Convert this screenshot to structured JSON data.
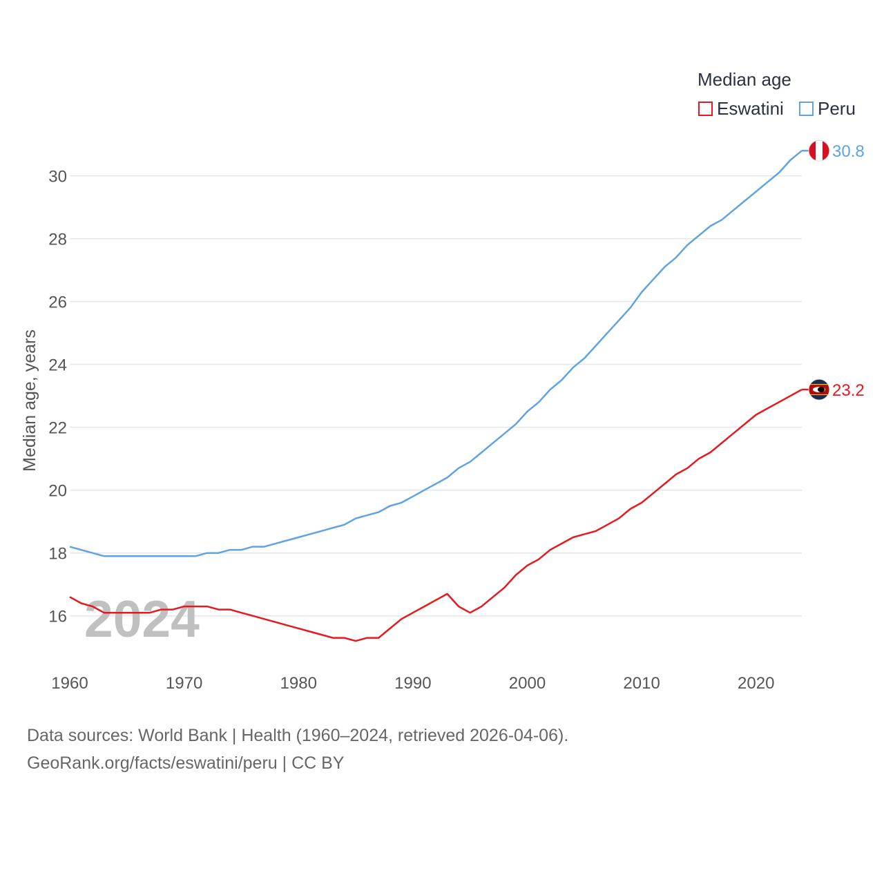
{
  "legend": {
    "title": "Median age",
    "items": [
      {
        "name": "Eswatini",
        "color": "#e8191e"
      },
      {
        "name": "Peru",
        "color": "#5ea3e2"
      }
    ]
  },
  "year_watermark": "2024",
  "source": {
    "line1": "Data sources: World Bank | Health (1960–2024, retrieved 2026-04-06).",
    "line2": "GeoRank.org/facts/eswatini/peru | CC BY"
  },
  "chart_data": {
    "type": "line",
    "title": "",
    "xlabel": "",
    "ylabel": "Median age, years",
    "xlim": [
      1960,
      2024
    ],
    "ylim": [
      14.5,
      31.2
    ],
    "x_ticks": [
      1960,
      1970,
      1980,
      1990,
      2000,
      2010,
      2020
    ],
    "y_ticks": [
      16,
      18,
      20,
      22,
      24,
      26,
      28,
      30
    ],
    "grid": true,
    "legend_position": "top-right",
    "x": [
      1960,
      1961,
      1962,
      1963,
      1964,
      1965,
      1966,
      1967,
      1968,
      1969,
      1970,
      1971,
      1972,
      1973,
      1974,
      1975,
      1976,
      1977,
      1978,
      1979,
      1980,
      1981,
      1982,
      1983,
      1984,
      1985,
      1986,
      1987,
      1988,
      1989,
      1990,
      1991,
      1992,
      1993,
      1994,
      1995,
      1996,
      1997,
      1998,
      1999,
      2000,
      2001,
      2002,
      2003,
      2004,
      2005,
      2006,
      2007,
      2008,
      2009,
      2010,
      2011,
      2012,
      2013,
      2014,
      2015,
      2016,
      2017,
      2018,
      2019,
      2020,
      2021,
      2022,
      2023,
      2024
    ],
    "series": [
      {
        "name": "Eswatini",
        "color": "#e8191e",
        "end_label": "23.2",
        "values": [
          16.6,
          16.4,
          16.3,
          16.1,
          16.1,
          16.1,
          16.1,
          16.1,
          16.2,
          16.2,
          16.3,
          16.3,
          16.3,
          16.2,
          16.2,
          16.1,
          16.0,
          15.9,
          15.8,
          15.7,
          15.6,
          15.5,
          15.4,
          15.3,
          15.3,
          15.2,
          15.3,
          15.3,
          15.6,
          15.9,
          16.1,
          16.3,
          16.5,
          16.7,
          16.3,
          16.1,
          16.3,
          16.6,
          16.9,
          17.3,
          17.6,
          17.8,
          18.1,
          18.3,
          18.5,
          18.6,
          18.7,
          18.9,
          19.1,
          19.4,
          19.6,
          19.9,
          20.2,
          20.5,
          20.7,
          21.0,
          21.2,
          21.5,
          21.8,
          22.1,
          22.4,
          22.6,
          22.8,
          23.0,
          23.2
        ]
      },
      {
        "name": "Peru",
        "color": "#5ea3e2",
        "end_label": "30.8",
        "values": [
          18.2,
          18.1,
          18.0,
          17.9,
          17.9,
          17.9,
          17.9,
          17.9,
          17.9,
          17.9,
          17.9,
          17.9,
          18.0,
          18.0,
          18.1,
          18.1,
          18.2,
          18.2,
          18.3,
          18.4,
          18.5,
          18.6,
          18.7,
          18.8,
          18.9,
          19.1,
          19.2,
          19.3,
          19.5,
          19.6,
          19.8,
          20.0,
          20.2,
          20.4,
          20.7,
          20.9,
          21.2,
          21.5,
          21.8,
          22.1,
          22.5,
          22.8,
          23.2,
          23.5,
          23.9,
          24.2,
          24.6,
          25.0,
          25.4,
          25.8,
          26.3,
          26.7,
          27.1,
          27.4,
          27.8,
          28.1,
          28.4,
          28.6,
          28.9,
          29.2,
          29.5,
          29.8,
          30.1,
          30.5,
          30.8
        ]
      }
    ]
  }
}
